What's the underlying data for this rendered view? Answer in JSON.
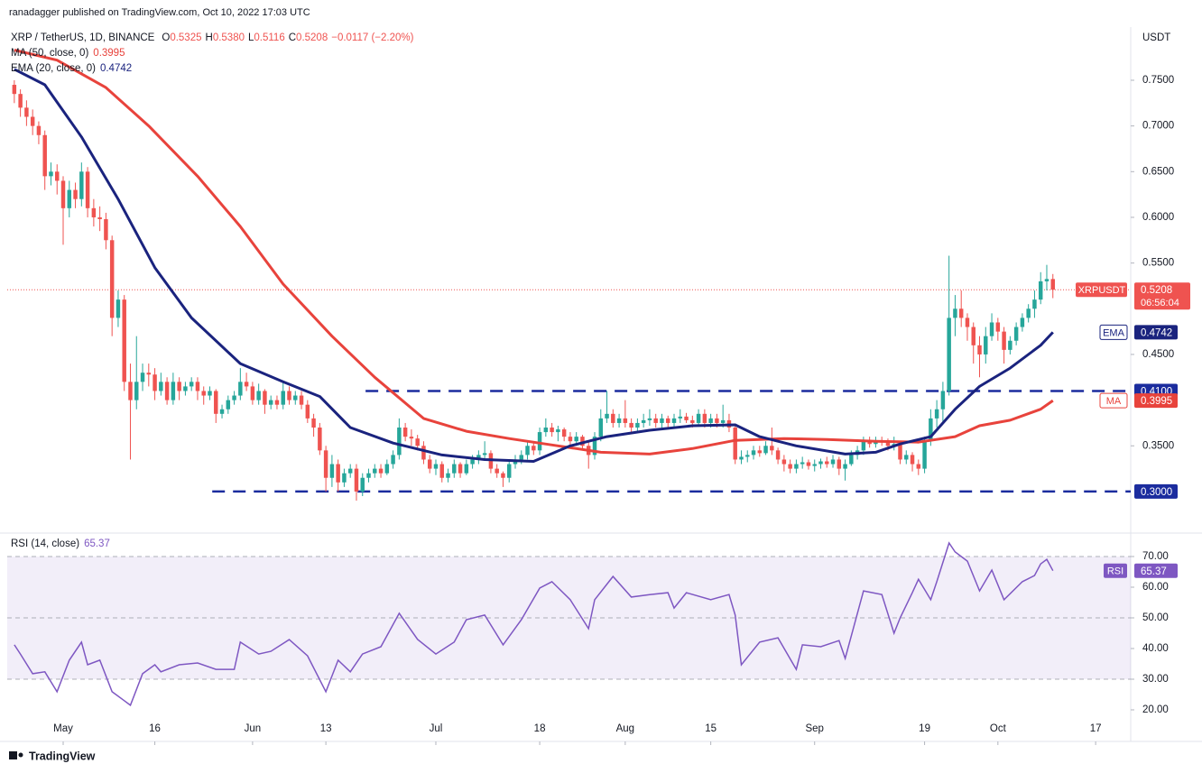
{
  "chart_data": {
    "type": "candlestick",
    "header": "ranadagger published on TradingView.com, Oct 10, 2022 17:03 UTC",
    "branding": "TradingView",
    "legend": {
      "symbol": "XRP / TetherUS, 1D, BINANCE",
      "items": [
        {
          "key": "O",
          "value": "0.5325"
        },
        {
          "key": "H",
          "value": "0.5380"
        },
        {
          "key": "L",
          "value": "0.5116"
        },
        {
          "key": "C",
          "value": "0.5208"
        }
      ],
      "change": "−0.0117 (−2.20%)"
    },
    "y_axis_label": "USDT",
    "up_color": "#26a69a",
    "down_color": "#ef5350",
    "xlim": [
      -1.16,
      182.74
    ],
    "ylim": [
      0.2575,
      0.8082
    ],
    "yticks": [
      {
        "value": 0.35,
        "label": "0.3500"
      },
      {
        "value": 0.45,
        "label": "0.4500"
      },
      {
        "value": 0.55,
        "label": "0.5500"
      },
      {
        "value": 0.6,
        "label": "0.6000"
      },
      {
        "value": 0.65,
        "label": "0.6500"
      },
      {
        "value": 0.7,
        "label": "0.7000"
      },
      {
        "value": 0.75,
        "label": "0.7500"
      }
    ],
    "xticks": [
      {
        "value": 8,
        "label": "May"
      },
      {
        "value": 23,
        "label": "16"
      },
      {
        "value": 39,
        "label": "Jun"
      },
      {
        "value": 51,
        "label": "13"
      },
      {
        "value": 69,
        "label": "Jul"
      },
      {
        "value": 86,
        "label": "18"
      },
      {
        "value": 100,
        "label": "Aug"
      },
      {
        "value": 114,
        "label": "15"
      },
      {
        "value": 131,
        "label": "Sep"
      },
      {
        "value": 149,
        "label": "19"
      },
      {
        "value": 161,
        "label": "Oct"
      },
      {
        "value": 177,
        "label": "17"
      }
    ],
    "ohlc": [
      [
        0.745,
        0.75,
        0.725,
        0.735
      ],
      [
        0.735,
        0.74,
        0.71,
        0.72
      ],
      [
        0.72,
        0.728,
        0.7,
        0.71
      ],
      [
        0.71,
        0.718,
        0.69,
        0.7
      ],
      [
        0.7,
        0.705,
        0.68,
        0.69
      ],
      [
        0.69,
        0.695,
        0.63,
        0.645
      ],
      [
        0.645,
        0.66,
        0.635,
        0.65
      ],
      [
        0.65,
        0.658,
        0.625,
        0.64
      ],
      [
        0.64,
        0.645,
        0.57,
        0.61
      ],
      [
        0.61,
        0.64,
        0.6,
        0.63
      ],
      [
        0.63,
        0.638,
        0.61,
        0.62
      ],
      [
        0.62,
        0.66,
        0.612,
        0.65
      ],
      [
        0.65,
        0.655,
        0.6,
        0.61
      ],
      [
        0.61,
        0.62,
        0.59,
        0.6
      ],
      [
        0.6,
        0.612,
        0.585,
        0.598
      ],
      [
        0.598,
        0.605,
        0.565,
        0.575
      ],
      [
        0.575,
        0.58,
        0.47,
        0.49
      ],
      [
        0.49,
        0.52,
        0.48,
        0.51
      ],
      [
        0.51,
        0.515,
        0.41,
        0.42
      ],
      [
        0.42,
        0.44,
        0.335,
        0.4
      ],
      [
        0.4,
        0.47,
        0.39,
        0.42
      ],
      [
        0.42,
        0.44,
        0.41,
        0.43
      ],
      [
        0.43,
        0.44,
        0.415,
        0.428
      ],
      [
        0.428,
        0.435,
        0.4,
        0.41
      ],
      [
        0.41,
        0.43,
        0.405,
        0.42
      ],
      [
        0.42,
        0.425,
        0.395,
        0.4
      ],
      [
        0.4,
        0.43,
        0.395,
        0.42
      ],
      [
        0.42,
        0.425,
        0.4,
        0.41
      ],
      [
        0.41,
        0.42,
        0.405,
        0.415
      ],
      [
        0.415,
        0.425,
        0.41,
        0.42
      ],
      [
        0.42,
        0.425,
        0.4,
        0.41
      ],
      [
        0.41,
        0.415,
        0.395,
        0.405
      ],
      [
        0.405,
        0.415,
        0.4,
        0.41
      ],
      [
        0.41,
        0.412,
        0.375,
        0.385
      ],
      [
        0.385,
        0.395,
        0.38,
        0.39
      ],
      [
        0.39,
        0.405,
        0.385,
        0.4
      ],
      [
        0.4,
        0.41,
        0.395,
        0.405
      ],
      [
        0.405,
        0.435,
        0.4,
        0.42
      ],
      [
        0.42,
        0.43,
        0.41,
        0.415
      ],
      [
        0.415,
        0.42,
        0.395,
        0.4
      ],
      [
        0.4,
        0.418,
        0.395,
        0.41
      ],
      [
        0.41,
        0.412,
        0.385,
        0.395
      ],
      [
        0.395,
        0.405,
        0.39,
        0.4
      ],
      [
        0.4,
        0.405,
        0.39,
        0.395
      ],
      [
        0.395,
        0.42,
        0.39,
        0.41
      ],
      [
        0.41,
        0.415,
        0.395,
        0.4
      ],
      [
        0.4,
        0.41,
        0.395,
        0.405
      ],
      [
        0.405,
        0.41,
        0.39,
        0.395
      ],
      [
        0.395,
        0.4,
        0.375,
        0.38
      ],
      [
        0.38,
        0.385,
        0.36,
        0.37
      ],
      [
        0.37,
        0.375,
        0.34,
        0.345
      ],
      [
        0.345,
        0.35,
        0.3,
        0.315
      ],
      [
        0.315,
        0.34,
        0.305,
        0.33
      ],
      [
        0.33,
        0.335,
        0.3,
        0.31
      ],
      [
        0.31,
        0.325,
        0.305,
        0.32
      ],
      [
        0.32,
        0.33,
        0.315,
        0.325
      ],
      [
        0.325,
        0.33,
        0.29,
        0.3
      ],
      [
        0.3,
        0.32,
        0.295,
        0.315
      ],
      [
        0.315,
        0.325,
        0.31,
        0.32
      ],
      [
        0.32,
        0.33,
        0.315,
        0.325
      ],
      [
        0.325,
        0.33,
        0.315,
        0.32
      ],
      [
        0.32,
        0.335,
        0.318,
        0.33
      ],
      [
        0.33,
        0.345,
        0.325,
        0.34
      ],
      [
        0.34,
        0.38,
        0.335,
        0.37
      ],
      [
        0.37,
        0.375,
        0.355,
        0.36
      ],
      [
        0.36,
        0.368,
        0.35,
        0.358
      ],
      [
        0.358,
        0.362,
        0.345,
        0.35
      ],
      [
        0.35,
        0.355,
        0.33,
        0.335
      ],
      [
        0.335,
        0.34,
        0.32,
        0.325
      ],
      [
        0.325,
        0.335,
        0.318,
        0.33
      ],
      [
        0.33,
        0.333,
        0.31,
        0.315
      ],
      [
        0.315,
        0.325,
        0.31,
        0.32
      ],
      [
        0.32,
        0.335,
        0.315,
        0.33
      ],
      [
        0.33,
        0.332,
        0.315,
        0.32
      ],
      [
        0.32,
        0.335,
        0.318,
        0.33
      ],
      [
        0.33,
        0.34,
        0.325,
        0.335
      ],
      [
        0.335,
        0.345,
        0.33,
        0.34
      ],
      [
        0.34,
        0.355,
        0.335,
        0.342
      ],
      [
        0.342,
        0.345,
        0.32,
        0.325
      ],
      [
        0.325,
        0.33,
        0.315,
        0.32
      ],
      [
        0.32,
        0.322,
        0.305,
        0.315
      ],
      [
        0.315,
        0.335,
        0.31,
        0.33
      ],
      [
        0.33,
        0.34,
        0.325,
        0.335
      ],
      [
        0.335,
        0.345,
        0.33,
        0.34
      ],
      [
        0.34,
        0.355,
        0.335,
        0.35
      ],
      [
        0.35,
        0.355,
        0.34,
        0.345
      ],
      [
        0.345,
        0.37,
        0.34,
        0.365
      ],
      [
        0.365,
        0.38,
        0.36,
        0.37
      ],
      [
        0.37,
        0.375,
        0.36,
        0.365
      ],
      [
        0.365,
        0.372,
        0.355,
        0.368
      ],
      [
        0.368,
        0.37,
        0.355,
        0.36
      ],
      [
        0.36,
        0.365,
        0.35,
        0.355
      ],
      [
        0.355,
        0.365,
        0.35,
        0.36
      ],
      [
        0.36,
        0.362,
        0.345,
        0.35
      ],
      [
        0.35,
        0.355,
        0.325,
        0.34
      ],
      [
        0.34,
        0.365,
        0.335,
        0.36
      ],
      [
        0.36,
        0.39,
        0.355,
        0.38
      ],
      [
        0.38,
        0.41,
        0.375,
        0.385
      ],
      [
        0.385,
        0.39,
        0.37,
        0.375
      ],
      [
        0.375,
        0.385,
        0.37,
        0.38
      ],
      [
        0.38,
        0.4,
        0.37,
        0.375
      ],
      [
        0.375,
        0.38,
        0.365,
        0.37
      ],
      [
        0.37,
        0.38,
        0.365,
        0.375
      ],
      [
        0.375,
        0.385,
        0.37,
        0.378
      ],
      [
        0.378,
        0.39,
        0.372,
        0.38
      ],
      [
        0.38,
        0.385,
        0.37,
        0.375
      ],
      [
        0.375,
        0.385,
        0.37,
        0.38
      ],
      [
        0.38,
        0.383,
        0.37,
        0.375
      ],
      [
        0.375,
        0.385,
        0.37,
        0.38
      ],
      [
        0.38,
        0.39,
        0.375,
        0.382
      ],
      [
        0.382,
        0.386,
        0.375,
        0.378
      ],
      [
        0.378,
        0.383,
        0.37,
        0.375
      ],
      [
        0.375,
        0.39,
        0.372,
        0.385
      ],
      [
        0.385,
        0.39,
        0.37,
        0.375
      ],
      [
        0.375,
        0.385,
        0.37,
        0.38
      ],
      [
        0.38,
        0.385,
        0.37,
        0.375
      ],
      [
        0.375,
        0.395,
        0.37,
        0.378
      ],
      [
        0.378,
        0.385,
        0.365,
        0.37
      ],
      [
        0.37,
        0.372,
        0.33,
        0.335
      ],
      [
        0.335,
        0.345,
        0.33,
        0.338
      ],
      [
        0.338,
        0.345,
        0.332,
        0.34
      ],
      [
        0.34,
        0.35,
        0.335,
        0.345
      ],
      [
        0.345,
        0.35,
        0.338,
        0.342
      ],
      [
        0.342,
        0.355,
        0.34,
        0.35
      ],
      [
        0.35,
        0.37,
        0.34,
        0.345
      ],
      [
        0.345,
        0.348,
        0.33,
        0.335
      ],
      [
        0.335,
        0.34,
        0.322,
        0.33
      ],
      [
        0.33,
        0.335,
        0.32,
        0.325
      ],
      [
        0.325,
        0.335,
        0.32,
        0.33
      ],
      [
        0.33,
        0.338,
        0.325,
        0.332
      ],
      [
        0.332,
        0.335,
        0.324,
        0.328
      ],
      [
        0.328,
        0.335,
        0.322,
        0.33
      ],
      [
        0.33,
        0.336,
        0.325,
        0.333
      ],
      [
        0.333,
        0.338,
        0.326,
        0.33
      ],
      [
        0.33,
        0.34,
        0.326,
        0.335
      ],
      [
        0.335,
        0.338,
        0.318,
        0.325
      ],
      [
        0.325,
        0.335,
        0.312,
        0.33
      ],
      [
        0.33,
        0.345,
        0.328,
        0.34
      ],
      [
        0.34,
        0.35,
        0.335,
        0.345
      ],
      [
        0.345,
        0.36,
        0.34,
        0.355
      ],
      [
        0.355,
        0.36,
        0.348,
        0.352
      ],
      [
        0.352,
        0.36,
        0.348,
        0.356
      ],
      [
        0.356,
        0.36,
        0.35,
        0.354
      ],
      [
        0.354,
        0.358,
        0.345,
        0.35
      ],
      [
        0.35,
        0.36,
        0.345,
        0.352
      ],
      [
        0.352,
        0.355,
        0.33,
        0.335
      ],
      [
        0.335,
        0.345,
        0.33,
        0.34
      ],
      [
        0.34,
        0.343,
        0.322,
        0.33
      ],
      [
        0.33,
        0.335,
        0.318,
        0.325
      ],
      [
        0.325,
        0.36,
        0.32,
        0.355
      ],
      [
        0.355,
        0.39,
        0.35,
        0.38
      ],
      [
        0.38,
        0.4,
        0.37,
        0.39
      ],
      [
        0.39,
        0.42,
        0.375,
        0.41
      ],
      [
        0.41,
        0.558,
        0.405,
        0.49
      ],
      [
        0.49,
        0.515,
        0.47,
        0.5
      ],
      [
        0.5,
        0.52,
        0.48,
        0.49
      ],
      [
        0.49,
        0.495,
        0.465,
        0.48
      ],
      [
        0.48,
        0.485,
        0.44,
        0.46
      ],
      [
        0.46,
        0.47,
        0.425,
        0.45
      ],
      [
        0.45,
        0.48,
        0.44,
        0.47
      ],
      [
        0.47,
        0.495,
        0.465,
        0.485
      ],
      [
        0.485,
        0.49,
        0.465,
        0.475
      ],
      [
        0.475,
        0.48,
        0.44,
        0.455
      ],
      [
        0.455,
        0.47,
        0.45,
        0.465
      ],
      [
        0.465,
        0.485,
        0.46,
        0.48
      ],
      [
        0.48,
        0.495,
        0.475,
        0.49
      ],
      [
        0.49,
        0.505,
        0.485,
        0.5
      ],
      [
        0.5,
        0.52,
        0.49,
        0.51
      ],
      [
        0.51,
        0.54,
        0.505,
        0.53
      ],
      [
        0.53,
        0.548,
        0.52,
        0.5325
      ],
      [
        0.5325,
        0.538,
        0.5116,
        0.5208
      ]
    ],
    "last_price": {
      "name": "XRPUSDT",
      "countdown": "06:56:04",
      "color": "#ef5350"
    },
    "lines": [
      {
        "name": "MA",
        "legend": "MA (50, close, 0)",
        "color": "#e8433c",
        "x": [
          0,
          7,
          15,
          22,
          30,
          37,
          44,
          52,
          59,
          67,
          74,
          81,
          89,
          96,
          104,
          111,
          118,
          126,
          133,
          141,
          148,
          154,
          158,
          163,
          168,
          170
        ],
        "values": [
          0.783,
          0.772,
          0.742,
          0.7,
          0.645,
          0.59,
          0.527,
          0.47,
          0.425,
          0.38,
          0.366,
          0.358,
          0.35,
          0.343,
          0.341,
          0.347,
          0.356,
          0.358,
          0.357,
          0.355,
          0.354,
          0.36,
          0.372,
          0.378,
          0.39,
          0.3995
        ]
      },
      {
        "name": "EMA",
        "legend": "EMA (20, close, 0)",
        "color": "#1a237e",
        "x": [
          0,
          5,
          11,
          17,
          23,
          29,
          37,
          44,
          50,
          55,
          62,
          70,
          77,
          85,
          91,
          97,
          104,
          111,
          118,
          122,
          128,
          136,
          141,
          145,
          150,
          154,
          158,
          163,
          168,
          170
        ],
        "values": [
          0.762,
          0.745,
          0.688,
          0.62,
          0.545,
          0.49,
          0.44,
          0.42,
          0.404,
          0.37,
          0.353,
          0.34,
          0.335,
          0.333,
          0.35,
          0.36,
          0.367,
          0.372,
          0.373,
          0.36,
          0.35,
          0.341,
          0.343,
          0.352,
          0.36,
          0.39,
          0.415,
          0.435,
          0.46,
          0.4742
        ]
      }
    ],
    "levels": [
      {
        "value": 0.41,
        "label": "0.4100",
        "from": 57.5,
        "color": "#1b2c9e"
      },
      {
        "value": 0.3,
        "label": "0.3000",
        "from": 32.4,
        "color": "#1b2c9e"
      }
    ],
    "rsi": {
      "legend": "RSI (14, close)",
      "name": "RSI",
      "color": "#7e57c2",
      "ylim": [
        9.7,
        77.06
      ],
      "yticks": [
        {
          "value": 20,
          "label": "20.00"
        },
        {
          "value": 30,
          "label": "30.00"
        },
        {
          "value": 40,
          "label": "40.00"
        },
        {
          "value": 50,
          "label": "50.00"
        },
        {
          "value": 60,
          "label": "60.00"
        },
        {
          "value": 70,
          "label": "70.00"
        }
      ],
      "band": [
        30,
        70
      ],
      "guides": [
        70,
        50,
        30
      ],
      "x": [
        0,
        1,
        3,
        5,
        7,
        9,
        11,
        12,
        14,
        16,
        18,
        19,
        21,
        23,
        24,
        27,
        30,
        33,
        36,
        37,
        40,
        42,
        45,
        48,
        51,
        53,
        55,
        57,
        60,
        63,
        66,
        69,
        72,
        74,
        77,
        80,
        83,
        86,
        88,
        91,
        94,
        95,
        98,
        101,
        104,
        107,
        108,
        110,
        114,
        117,
        118,
        119,
        122,
        125,
        128,
        129,
        132,
        135,
        136,
        139,
        142,
        144,
        145,
        147,
        148,
        150,
        151,
        153,
        154,
        156,
        158,
        160,
        162,
        165,
        167,
        168,
        169,
        170
      ],
      "values": [
        41.2,
        38.2,
        31.8,
        32.4,
        25.9,
        36.2,
        42.1,
        34.7,
        36.2,
        25.9,
        23,
        21.5,
        31.8,
        34.7,
        32.4,
        34.7,
        35.3,
        33.2,
        33.2,
        42.1,
        38.2,
        39.1,
        42.9,
        37.6,
        25.9,
        36.2,
        32.4,
        38.2,
        40.6,
        51.5,
        43,
        38.2,
        42.1,
        49.4,
        50.9,
        41.2,
        49.4,
        59.7,
        61.8,
        55.9,
        46.5,
        55.9,
        63.5,
        56.8,
        57.6,
        58.2,
        53.2,
        58.2,
        55.9,
        57.6,
        50.9,
        34.7,
        42.1,
        43.5,
        33.2,
        41.2,
        40.6,
        42.6,
        36.8,
        58.8,
        57.6,
        45,
        50,
        58.2,
        62.6,
        55.9,
        61.8,
        74.4,
        71.5,
        68.5,
        58.8,
        65.6,
        55.9,
        61.8,
        63.8,
        67.6,
        69.1,
        65.37
      ]
    }
  }
}
